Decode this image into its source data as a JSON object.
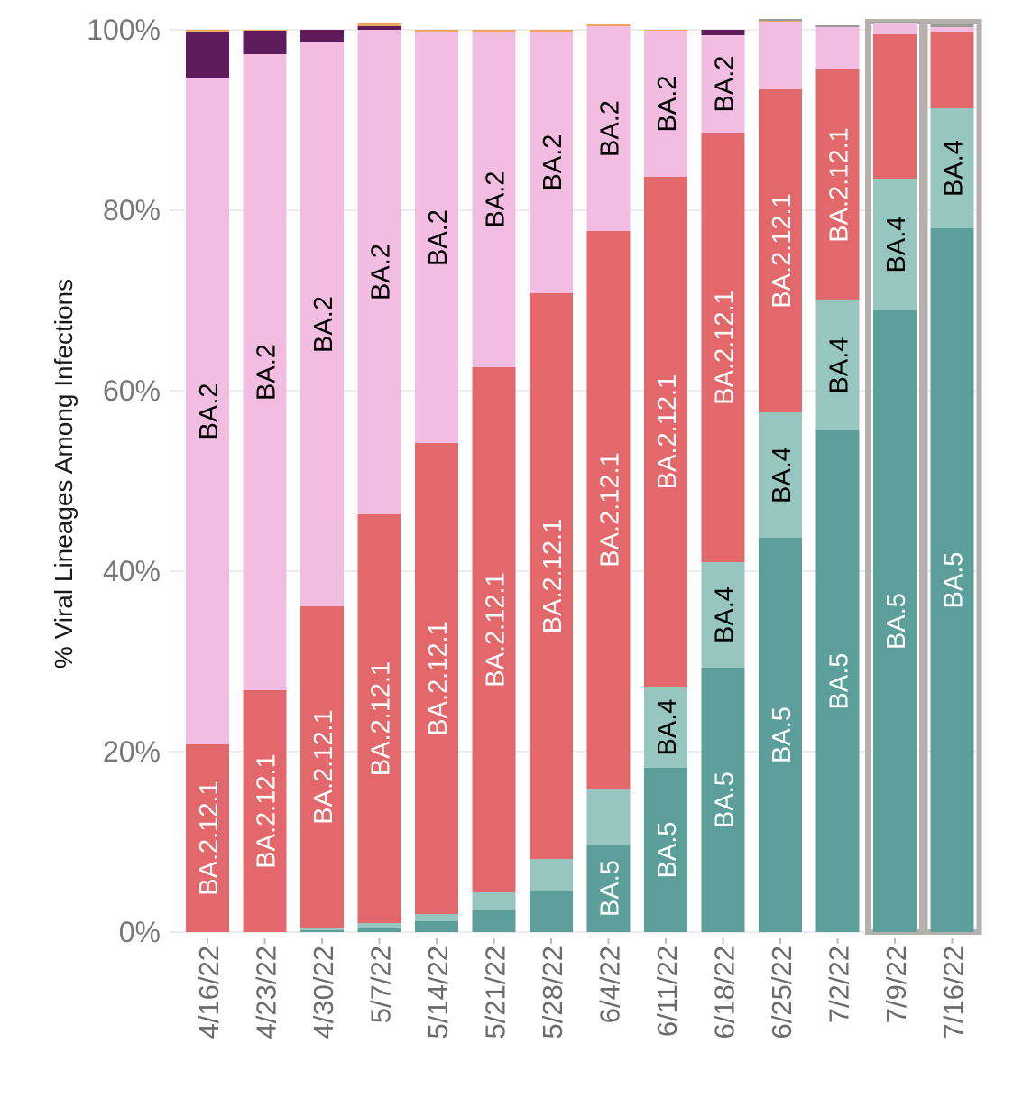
{
  "chart_data": {
    "type": "bar",
    "stacked": true,
    "ylabel": "% Viral Lineages Among Infections",
    "xlabel": "",
    "ylim": [
      0,
      100
    ],
    "yticks": [
      "0%",
      "20%",
      "40%",
      "60%",
      "80%",
      "100%"
    ],
    "grid": true,
    "legend": "none",
    "highlighted_categories": [
      "7/9/22",
      "7/16/22"
    ],
    "categories": [
      "4/16/22",
      "4/23/22",
      "4/30/22",
      "5/7/22",
      "5/14/22",
      "5/21/22",
      "5/28/22",
      "6/4/22",
      "6/11/22",
      "6/18/22",
      "6/25/22",
      "7/2/22",
      "7/9/22",
      "7/16/22"
    ],
    "series": [
      {
        "label": "BA.5",
        "color": "#5b9e9a",
        "label_color": "#ffffff",
        "values": [
          0.0,
          0.0,
          0.2,
          0.4,
          1.2,
          2.4,
          4.5,
          9.7,
          18.2,
          29.3,
          43.7,
          55.6,
          68.9,
          78.0
        ],
        "labeled": [
          false,
          false,
          false,
          false,
          false,
          false,
          false,
          true,
          true,
          true,
          true,
          true,
          true,
          true
        ]
      },
      {
        "label": "BA.4",
        "color": "#97c6c1",
        "label_color": "#000000",
        "values": [
          0.0,
          0.0,
          0.3,
          0.6,
          0.8,
          2.0,
          3.6,
          6.2,
          9.0,
          11.7,
          13.9,
          14.4,
          14.6,
          13.3
        ],
        "labeled": [
          false,
          false,
          false,
          false,
          false,
          false,
          false,
          false,
          true,
          true,
          true,
          true,
          true,
          true
        ]
      },
      {
        "label": "BA.2.12.1",
        "color": "#e2686b",
        "label_color": "#ffffff",
        "values": [
          20.8,
          26.8,
          35.6,
          45.3,
          52.2,
          58.2,
          62.7,
          61.8,
          56.5,
          47.6,
          35.8,
          25.6,
          16.0,
          8.5
        ],
        "labeled": [
          true,
          true,
          true,
          true,
          true,
          true,
          true,
          true,
          true,
          true,
          true,
          true,
          false,
          false
        ],
        "label_override": {
          "12": false
        }
      },
      {
        "label": "BA.2",
        "color": "#f2bde0",
        "label_color": "#000000",
        "values": [
          73.8,
          70.5,
          62.5,
          53.7,
          45.5,
          37.2,
          29.0,
          22.7,
          16.2,
          10.8,
          7.5,
          4.7,
          1.2,
          0.5
        ],
        "labeled": [
          true,
          true,
          true,
          true,
          true,
          true,
          true,
          true,
          true,
          true,
          false,
          false,
          false,
          false
        ]
      },
      {
        "label": "other-dark",
        "color": "#5f1c5c",
        "label_color": "#ffffff",
        "values": [
          5.1,
          2.6,
          1.4,
          0.4,
          0.0,
          0.0,
          0.0,
          0.0,
          0.0,
          0.6,
          0.0,
          0.0,
          0.0,
          0.0
        ],
        "labeled": [
          false,
          false,
          false,
          false,
          false,
          false,
          false,
          false,
          false,
          false,
          false,
          false,
          false,
          false
        ]
      },
      {
        "label": "other-orange",
        "color": "#f0a560",
        "label_color": "#000000",
        "values": [
          0.3,
          0.1,
          0.0,
          0.3,
          0.3,
          0.2,
          0.2,
          0.2,
          0.1,
          0.0,
          0.1,
          0.0,
          0.0,
          0.0
        ],
        "labeled": [
          false,
          false,
          false,
          false,
          false,
          false,
          false,
          false,
          false,
          false,
          false,
          false,
          false,
          false
        ]
      },
      {
        "label": "other-gray",
        "color": "#9a9a9a",
        "label_color": "#000000",
        "values": [
          0.0,
          0.0,
          0.0,
          0.0,
          0.0,
          0.0,
          0.0,
          0.0,
          0.0,
          0.0,
          0.2,
          0.2,
          0.2,
          0.3
        ],
        "labeled": [
          false,
          false,
          false,
          false,
          false,
          false,
          false,
          false,
          false,
          false,
          false,
          false,
          false,
          false
        ]
      }
    ]
  }
}
